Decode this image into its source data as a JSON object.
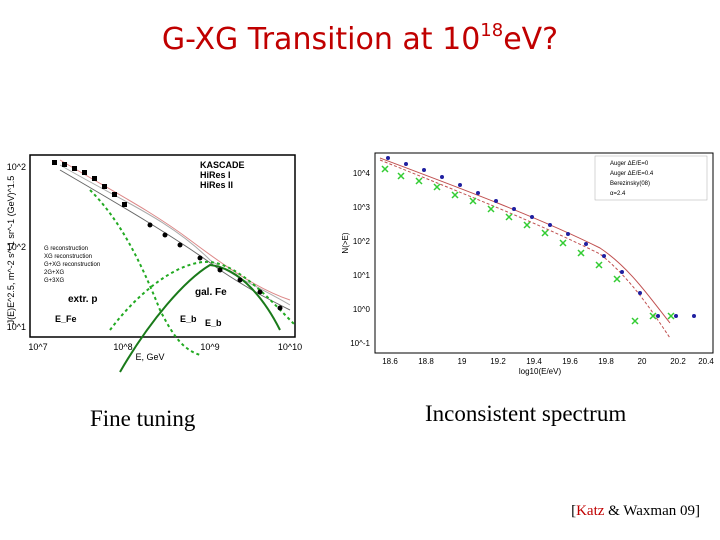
{
  "title": {
    "text": "G-XG Transition at 10",
    "sup": "18",
    "suffix": "eV?"
  },
  "captions": {
    "left": "Fine tuning",
    "right": "Inconsistent spectrum"
  },
  "citation": {
    "open": "[",
    "author1": "Katz",
    "rest": " & Waxman 09]"
  },
  "colors": {
    "title": "#c00000",
    "green": "#22aa22",
    "blue": "#2020a0",
    "red": "#c05050",
    "axis": "#000000"
  },
  "left_chart": {
    "ylabel": "J(E)E^2.5, m^-2 s^-1 sr^-1 (GeV)^1.5",
    "xlabel": "E, GeV",
    "ytick_labels": [
      "10^2",
      "10^1"
    ],
    "xtick_labels": [
      "10^7",
      "10^8",
      "10^9",
      "10^10"
    ],
    "legend_markers": [
      "KASCADE",
      "HiRes I",
      "HiRes II"
    ],
    "legend_curves": [
      "G reconstruction",
      "XG reconstruction",
      "G+XG reconstruction",
      "2G+XG",
      "G+3XG"
    ],
    "annotations": {
      "extr": "extr. p",
      "galfe": "gal. Fe",
      "efe": "E_Fe",
      "eb": "E_b",
      "eb2": "E_b"
    }
  },
  "right_chart": {
    "ylabel": "N(>E)",
    "xlabel": "log10(E/eV)",
    "ytick_labels": [
      "10^4",
      "10^3",
      "10^2",
      "10^1",
      "10^0",
      "10^-1"
    ],
    "xtick_labels": [
      "18.6",
      "18.8",
      "19",
      "19.2",
      "19.4",
      "19.6",
      "19.8",
      "20",
      "20.2",
      "20.4"
    ],
    "legend": [
      "Auger ΔE/E=0",
      "Auger ΔE/E=0.4",
      "Berezinsky(08)",
      "α=2.4"
    ]
  }
}
